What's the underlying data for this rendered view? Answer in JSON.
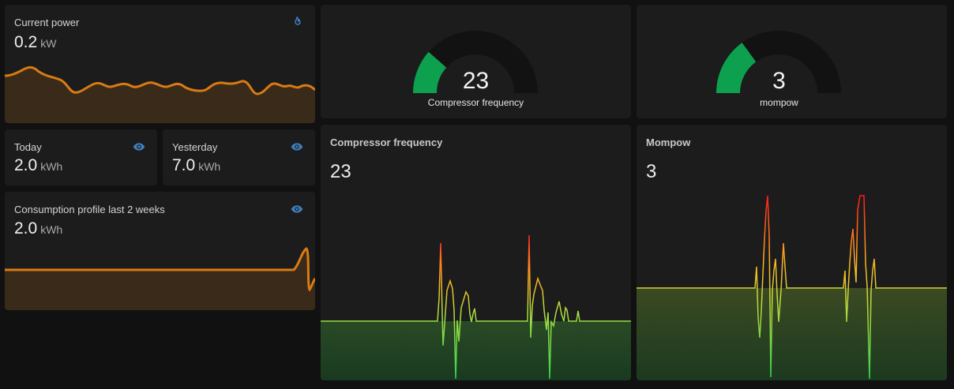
{
  "cards": {
    "current_power": {
      "title": "Current power",
      "value": "0.2",
      "unit": "kW",
      "icon": "fire-icon"
    },
    "today": {
      "title": "Today",
      "value": "2.0",
      "unit": "kWh",
      "icon": "eye-icon"
    },
    "yesterday": {
      "title": "Yesterday",
      "value": "7.0",
      "unit": "kWh",
      "icon": "eye-icon"
    },
    "consumption_profile": {
      "title": "Consumption profile last 2 weeks",
      "value": "2.0",
      "unit": "kWh",
      "icon": "eye-icon"
    }
  },
  "gauges": {
    "compressor": {
      "value": "23",
      "label": "Compressor frequency",
      "fraction": 0.23,
      "color": "#0da14f"
    },
    "mompow": {
      "value": "3",
      "label": "mompow",
      "fraction": 0.3,
      "color": "#0da14f"
    }
  },
  "graphs": {
    "compressor": {
      "title": "Compressor frequency",
      "value": "23"
    },
    "mompow": {
      "title": "Mompow",
      "value": "3"
    }
  },
  "colors": {
    "orange": "#d97b14",
    "green": "#0da14f",
    "icon_blue": "#3f7fbf",
    "card_bg": "#1c1c1c"
  }
}
